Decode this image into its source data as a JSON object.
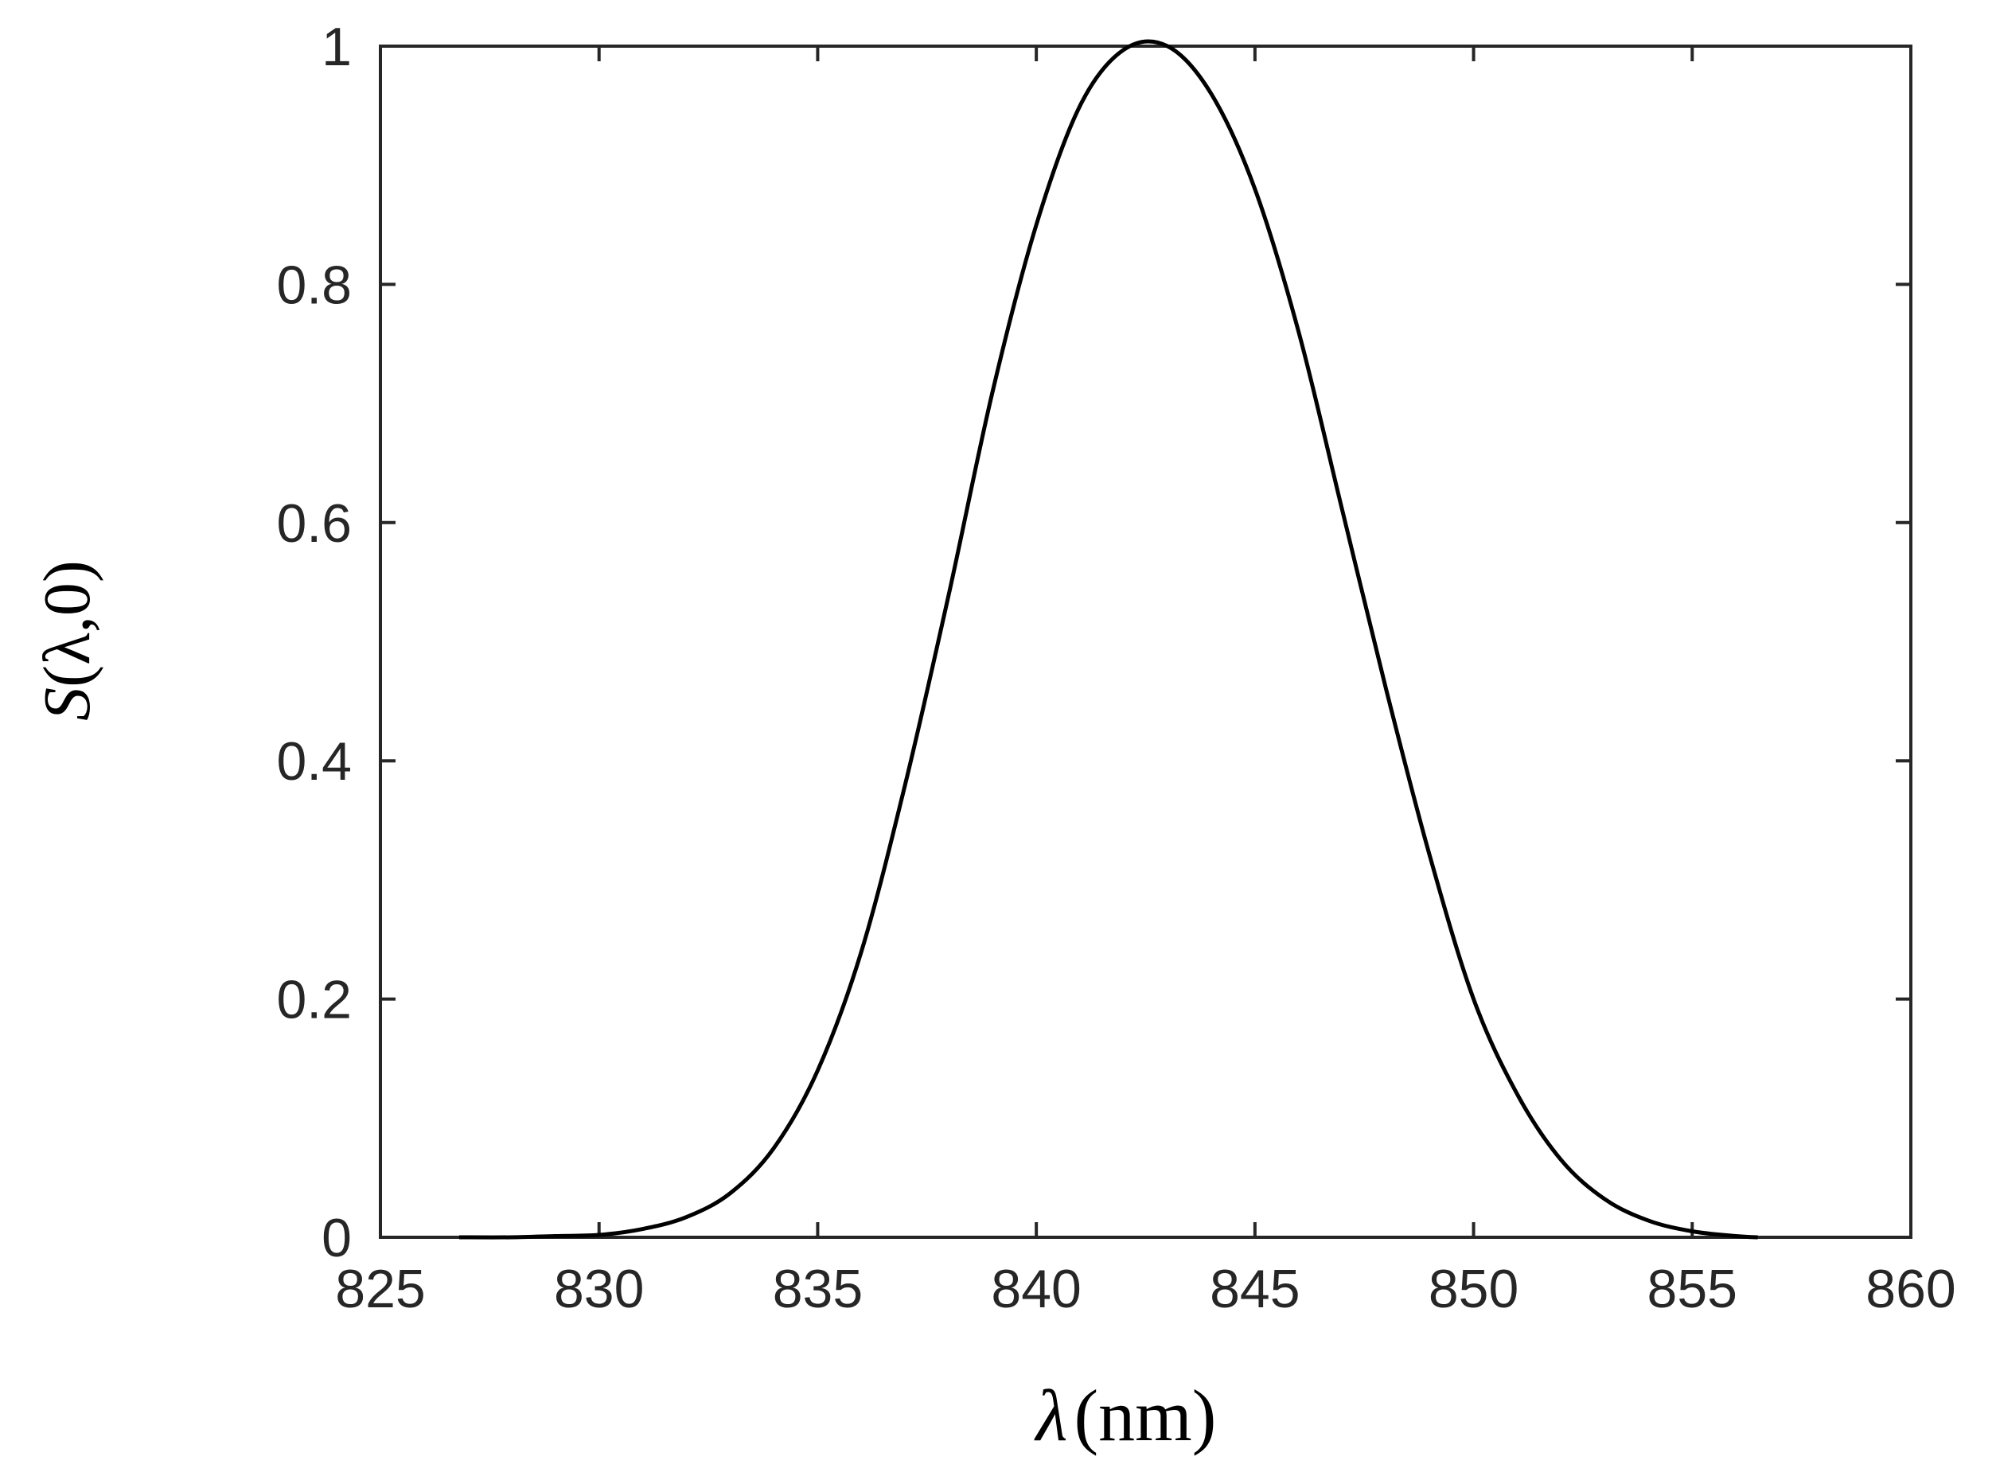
{
  "chart_data": {
    "type": "line",
    "title": "",
    "xlabel_symbol": "λ",
    "xlabel_unit": "(nm)",
    "ylabel_func": "S",
    "ylabel_args": "(λ,0)",
    "xlim": [
      825,
      860
    ],
    "ylim": [
      0,
      1
    ],
    "x_ticks": [
      825,
      830,
      835,
      840,
      845,
      850,
      855,
      860
    ],
    "y_ticks": [
      0,
      0.2,
      0.4,
      0.6,
      0.8,
      1
    ],
    "y_tick_labels": [
      "0",
      "0.2",
      "0.4",
      "0.6",
      "0.8",
      "1"
    ],
    "grid": false,
    "box": true,
    "series": [
      {
        "color": "#000000",
        "x": [
          826.8,
          828.0,
          829.0,
          830.0,
          831.0,
          832.0,
          833.0,
          834.0,
          835.0,
          836.0,
          837.0,
          838.0,
          839.0,
          840.0,
          841.0,
          842.0,
          843.0,
          844.0,
          845.0,
          846.0,
          847.0,
          848.0,
          849.0,
          850.0,
          851.0,
          852.0,
          853.0,
          854.0,
          855.0,
          856.0,
          856.5
        ],
        "y": [
          0.0,
          0.0,
          0.001,
          0.002,
          0.007,
          0.017,
          0.037,
          0.075,
          0.14,
          0.24,
          0.38,
          0.54,
          0.71,
          0.85,
          0.95,
          0.997,
          1.0,
          0.96,
          0.88,
          0.76,
          0.61,
          0.46,
          0.32,
          0.2,
          0.12,
          0.065,
          0.032,
          0.014,
          0.005,
          0.001,
          0.0
        ]
      }
    ]
  }
}
